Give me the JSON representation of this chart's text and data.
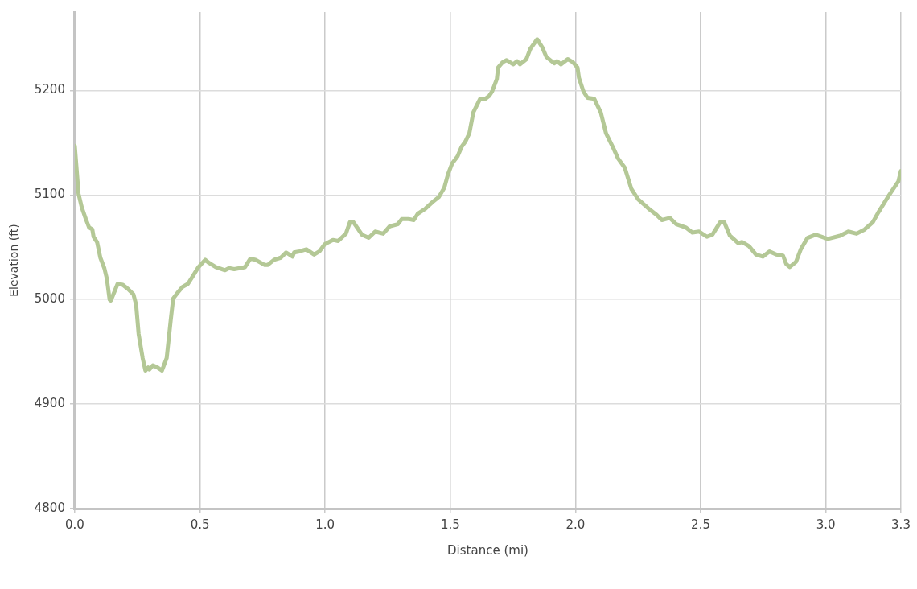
{
  "chart_data": {
    "type": "line",
    "xlabel": "Distance (mi)",
    "ylabel": "Elevation (ft)",
    "color": "#b4c896",
    "x": [
      0,
      0.015,
      0.028,
      0.044,
      0.057,
      0.07,
      0.075,
      0.089,
      0.102,
      0.118,
      0.128,
      0.139,
      0.144,
      0.171,
      0.192,
      0.213,
      0.234,
      0.245,
      0.255,
      0.271,
      0.282,
      0.293,
      0.298,
      0.312,
      0.33,
      0.348,
      0.367,
      0.383,
      0.393,
      0.409,
      0.43,
      0.452,
      0.473,
      0.494,
      0.521,
      0.536,
      0.563,
      0.6,
      0.616,
      0.637,
      0.68,
      0.701,
      0.722,
      0.759,
      0.77,
      0.796,
      0.823,
      0.844,
      0.87,
      0.876,
      0.897,
      0.925,
      0.956,
      0.977,
      0.999,
      1.031,
      1.052,
      1.083,
      1.099,
      1.113,
      1.147,
      1.174,
      1.2,
      1.232,
      1.258,
      1.29,
      1.306,
      1.333,
      1.354,
      1.37,
      1.401,
      1.428,
      1.454,
      1.476,
      1.491,
      1.507,
      1.529,
      1.545,
      1.56,
      1.576,
      1.592,
      1.619,
      1.64,
      1.656,
      1.667,
      1.686,
      1.691,
      1.709,
      1.725,
      1.751,
      1.767,
      1.778,
      1.804,
      1.82,
      1.847,
      1.868,
      1.884,
      1.915,
      1.926,
      1.942,
      1.969,
      1.99,
      2.008,
      2.014,
      2.032,
      2.048,
      2.075,
      2.101,
      2.122,
      2.149,
      2.17,
      2.197,
      2.223,
      2.25,
      2.292,
      2.324,
      2.345,
      2.377,
      2.403,
      2.44,
      2.467,
      2.494,
      2.525,
      2.547,
      2.578,
      2.594,
      2.617,
      2.65,
      2.666,
      2.693,
      2.721,
      2.748,
      2.775,
      2.802,
      2.829,
      2.842,
      2.856,
      2.881,
      2.9,
      2.927,
      2.96,
      3.008,
      3.057,
      3.09,
      3.123,
      3.155,
      3.188,
      3.209,
      3.253,
      3.29,
      3.3
    ],
    "values": [
      5147,
      5101,
      5088,
      5077,
      5069,
      5067,
      5060,
      5055,
      5040,
      5030,
      5020,
      5000,
      4999,
      5015,
      5014,
      5010,
      5005,
      4995,
      4967,
      4944,
      4932,
      4935,
      4933,
      4937,
      4935,
      4932,
      4944,
      4980,
      5001,
      5006,
      5012,
      5015,
      5023,
      5031,
      5038,
      5035,
      5031,
      5028,
      5030,
      5029,
      5031,
      5039,
      5038,
      5033,
      5033,
      5038,
      5040,
      5045,
      5041,
      5045,
      5046,
      5048,
      5043,
      5046,
      5053,
      5057,
      5056,
      5063,
      5074,
      5074,
      5062,
      5059,
      5065,
      5063,
      5070,
      5072,
      5077,
      5077,
      5076,
      5082,
      5087,
      5093,
      5098,
      5107,
      5120,
      5130,
      5137,
      5146,
      5151,
      5159,
      5179,
      5192,
      5192,
      5195,
      5199,
      5211,
      5222,
      5227,
      5229,
      5225,
      5228,
      5225,
      5230,
      5240,
      5249,
      5241,
      5232,
      5226,
      5228,
      5225,
      5230,
      5227,
      5222,
      5212,
      5199,
      5193,
      5192,
      5179,
      5159,
      5146,
      5135,
      5126,
      5106,
      5096,
      5087,
      5081,
      5076,
      5078,
      5072,
      5069,
      5064,
      5065,
      5060,
      5062,
      5074,
      5074,
      5061,
      5054,
      5055,
      5051,
      5043,
      5041,
      5046,
      5043,
      5042,
      5034,
      5031,
      5036,
      5048,
      5059,
      5062,
      5058,
      5061,
      5065,
      5063,
      5067,
      5074,
      5083,
      5100,
      5113,
      5123
    ],
    "xlim": [
      0,
      3.3
    ],
    "ylim": [
      4800,
      5275
    ],
    "xticks": [
      {
        "value": 0,
        "label": "0.0"
      },
      0.5,
      {
        "value": 1,
        "label": "1.0"
      },
      1.5,
      {
        "value": 2,
        "label": "2.0"
      },
      2.5,
      {
        "value": 3,
        "label": "3.0"
      },
      3.3
    ],
    "yticks": [
      4800,
      4900,
      5000,
      5100,
      5200
    ],
    "grid": true,
    "marker": "none",
    "line_style": "solid"
  }
}
